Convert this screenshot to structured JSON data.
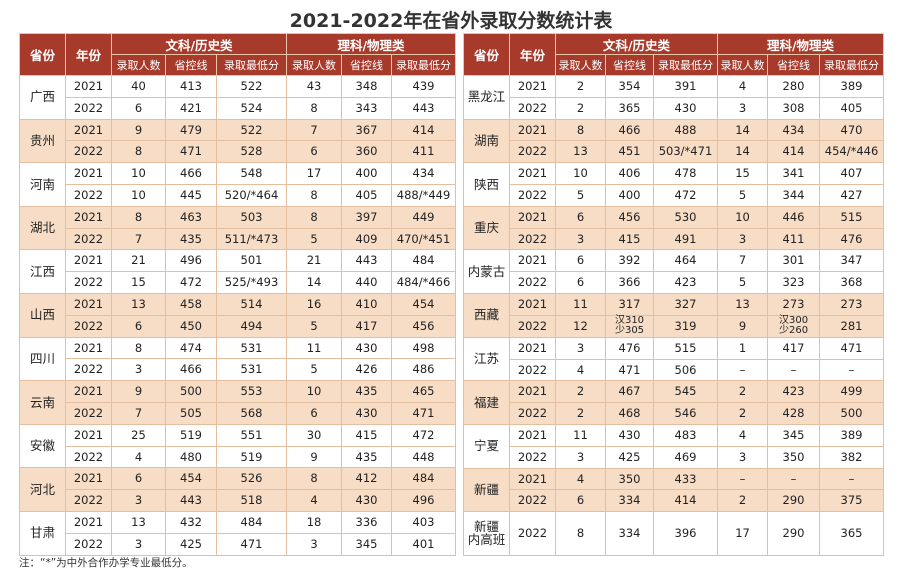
{
  "title": "2021-2022年在省外录取分数统计表",
  "header": {
    "province": "省份",
    "year": "年份",
    "arts": "文科/历史类",
    "science": "理科/物理类",
    "count": "录取人数",
    "control_line": "省控线",
    "min_score": "录取最低分"
  },
  "left_provinces": [
    {
      "name": "广西",
      "rows": [
        {
          "year": "2021",
          "a_count": "40",
          "a_line": "413",
          "a_min": "522",
          "s_count": "43",
          "s_line": "348",
          "s_min": "439"
        },
        {
          "year": "2022",
          "a_count": "6",
          "a_line": "421",
          "a_min": "524",
          "s_count": "8",
          "s_line": "343",
          "s_min": "443"
        }
      ]
    },
    {
      "name": "贵州",
      "rows": [
        {
          "year": "2021",
          "a_count": "9",
          "a_line": "479",
          "a_min": "522",
          "s_count": "7",
          "s_line": "367",
          "s_min": "414"
        },
        {
          "year": "2022",
          "a_count": "8",
          "a_line": "471",
          "a_min": "528",
          "s_count": "6",
          "s_line": "360",
          "s_min": "411"
        }
      ]
    },
    {
      "name": "河南",
      "rows": [
        {
          "year": "2021",
          "a_count": "10",
          "a_line": "466",
          "a_min": "548",
          "s_count": "17",
          "s_line": "400",
          "s_min": "434"
        },
        {
          "year": "2022",
          "a_count": "10",
          "a_line": "445",
          "a_min": "520/*464",
          "s_count": "8",
          "s_line": "405",
          "s_min": "488/*449"
        }
      ]
    },
    {
      "name": "湖北",
      "rows": [
        {
          "year": "2021",
          "a_count": "8",
          "a_line": "463",
          "a_min": "503",
          "s_count": "8",
          "s_line": "397",
          "s_min": "449"
        },
        {
          "year": "2022",
          "a_count": "7",
          "a_line": "435",
          "a_min": "511/*473",
          "s_count": "5",
          "s_line": "409",
          "s_min": "470/*451"
        }
      ]
    },
    {
      "name": "江西",
      "rows": [
        {
          "year": "2021",
          "a_count": "21",
          "a_line": "496",
          "a_min": "501",
          "s_count": "21",
          "s_line": "443",
          "s_min": "484"
        },
        {
          "year": "2022",
          "a_count": "15",
          "a_line": "472",
          "a_min": "525/*493",
          "s_count": "14",
          "s_line": "440",
          "s_min": "484/*466"
        }
      ]
    },
    {
      "name": "山西",
      "rows": [
        {
          "year": "2021",
          "a_count": "13",
          "a_line": "458",
          "a_min": "514",
          "s_count": "16",
          "s_line": "410",
          "s_min": "454"
        },
        {
          "year": "2022",
          "a_count": "6",
          "a_line": "450",
          "a_min": "494",
          "s_count": "5",
          "s_line": "417",
          "s_min": "456"
        }
      ]
    },
    {
      "name": "四川",
      "rows": [
        {
          "year": "2021",
          "a_count": "8",
          "a_line": "474",
          "a_min": "531",
          "s_count": "11",
          "s_line": "430",
          "s_min": "498"
        },
        {
          "year": "2022",
          "a_count": "3",
          "a_line": "466",
          "a_min": "531",
          "s_count": "5",
          "s_line": "426",
          "s_min": "486"
        }
      ]
    },
    {
      "name": "云南",
      "rows": [
        {
          "year": "2021",
          "a_count": "9",
          "a_line": "500",
          "a_min": "553",
          "s_count": "10",
          "s_line": "435",
          "s_min": "465"
        },
        {
          "year": "2022",
          "a_count": "7",
          "a_line": "505",
          "a_min": "568",
          "s_count": "6",
          "s_line": "430",
          "s_min": "471"
        }
      ]
    },
    {
      "name": "安徽",
      "rows": [
        {
          "year": "2021",
          "a_count": "25",
          "a_line": "519",
          "a_min": "551",
          "s_count": "30",
          "s_line": "415",
          "s_min": "472"
        },
        {
          "year": "2022",
          "a_count": "4",
          "a_line": "480",
          "a_min": "519",
          "s_count": "9",
          "s_line": "435",
          "s_min": "448"
        }
      ]
    },
    {
      "name": "河北",
      "rows": [
        {
          "year": "2021",
          "a_count": "6",
          "a_line": "454",
          "a_min": "526",
          "s_count": "8",
          "s_line": "412",
          "s_min": "484"
        },
        {
          "year": "2022",
          "a_count": "3",
          "a_line": "443",
          "a_min": "518",
          "s_count": "4",
          "s_line": "430",
          "s_min": "496"
        }
      ]
    },
    {
      "name": "甘肃",
      "rows": [
        {
          "year": "2021",
          "a_count": "13",
          "a_line": "432",
          "a_min": "484",
          "s_count": "18",
          "s_line": "336",
          "s_min": "403"
        },
        {
          "year": "2022",
          "a_count": "3",
          "a_line": "425",
          "a_min": "471",
          "s_count": "3",
          "s_line": "345",
          "s_min": "401"
        }
      ]
    }
  ],
  "right_provinces": [
    {
      "name": "黑龙江",
      "rows": [
        {
          "year": "2021",
          "a_count": "2",
          "a_line": "354",
          "a_min": "391",
          "s_count": "4",
          "s_line": "280",
          "s_min": "389"
        },
        {
          "year": "2022",
          "a_count": "2",
          "a_line": "365",
          "a_min": "430",
          "s_count": "3",
          "s_line": "308",
          "s_min": "405"
        }
      ]
    },
    {
      "name": "湖南",
      "rows": [
        {
          "year": "2021",
          "a_count": "8",
          "a_line": "466",
          "a_min": "488",
          "s_count": "14",
          "s_line": "434",
          "s_min": "470"
        },
        {
          "year": "2022",
          "a_count": "13",
          "a_line": "451",
          "a_min": "503/*471",
          "s_count": "14",
          "s_line": "414",
          "s_min": "454/*446"
        }
      ]
    },
    {
      "name": "陕西",
      "rows": [
        {
          "year": "2021",
          "a_count": "10",
          "a_line": "406",
          "a_min": "478",
          "s_count": "15",
          "s_line": "341",
          "s_min": "407"
        },
        {
          "year": "2022",
          "a_count": "5",
          "a_line": "400",
          "a_min": "472",
          "s_count": "5",
          "s_line": "344",
          "s_min": "427"
        }
      ]
    },
    {
      "name": "重庆",
      "rows": [
        {
          "year": "2021",
          "a_count": "6",
          "a_line": "456",
          "a_min": "530",
          "s_count": "10",
          "s_line": "446",
          "s_min": "515"
        },
        {
          "year": "2022",
          "a_count": "3",
          "a_line": "415",
          "a_min": "491",
          "s_count": "3",
          "s_line": "411",
          "s_min": "476"
        }
      ]
    },
    {
      "name": "内蒙古",
      "rows": [
        {
          "year": "2021",
          "a_count": "6",
          "a_line": "392",
          "a_min": "464",
          "s_count": "7",
          "s_line": "301",
          "s_min": "347"
        },
        {
          "year": "2022",
          "a_count": "6",
          "a_line": "366",
          "a_min": "423",
          "s_count": "5",
          "s_line": "323",
          "s_min": "368"
        }
      ]
    },
    {
      "name": "西藏",
      "rows": [
        {
          "year": "2021",
          "a_count": "11",
          "a_line": "317",
          "a_min": "327",
          "s_count": "13",
          "s_line": "273",
          "s_min": "273"
        },
        {
          "year": "2022",
          "a_count": "12",
          "a_line_top": "汉310",
          "a_line_bottom": "少305",
          "a_min": "319",
          "s_count": "9",
          "s_line_top": "汉300",
          "s_line_bottom": "少260",
          "s_min": "281"
        }
      ]
    },
    {
      "name": "江苏",
      "rows": [
        {
          "year": "2021",
          "a_count": "3",
          "a_line": "476",
          "a_min": "515",
          "s_count": "1",
          "s_line": "417",
          "s_min": "471"
        },
        {
          "year": "2022",
          "a_count": "4",
          "a_line": "471",
          "a_min": "506",
          "s_count": "–",
          "s_line": "–",
          "s_min": "–"
        }
      ]
    },
    {
      "name": "福建",
      "rows": [
        {
          "year": "2021",
          "a_count": "2",
          "a_line": "467",
          "a_min": "545",
          "s_count": "2",
          "s_line": "423",
          "s_min": "499"
        },
        {
          "year": "2022",
          "a_count": "2",
          "a_line": "468",
          "a_min": "546",
          "s_count": "2",
          "s_line": "428",
          "s_min": "500"
        }
      ]
    },
    {
      "name": "宁夏",
      "rows": [
        {
          "year": "2021",
          "a_count": "11",
          "a_line": "430",
          "a_min": "483",
          "s_count": "4",
          "s_line": "345",
          "s_min": "389"
        },
        {
          "year": "2022",
          "a_count": "3",
          "a_line": "425",
          "a_min": "469",
          "s_count": "3",
          "s_line": "350",
          "s_min": "382"
        }
      ]
    },
    {
      "name": "新疆",
      "rows": [
        {
          "year": "2021",
          "a_count": "4",
          "a_line": "350",
          "a_min": "433",
          "s_count": "–",
          "s_line": "–",
          "s_min": "–"
        },
        {
          "year": "2022",
          "a_count": "6",
          "a_line": "334",
          "a_min": "414",
          "s_count": "2",
          "s_line": "290",
          "s_min": "375"
        }
      ]
    }
  ],
  "xinjiang_inland": {
    "name_top": "新疆",
    "name_bottom": "内高班",
    "year": "2022",
    "a_count": "8",
    "a_line": "334",
    "a_min": "396",
    "s_count": "17",
    "s_line": "290",
    "s_min": "365"
  },
  "note": "注：“*”为中外合作办学专业最低分。"
}
